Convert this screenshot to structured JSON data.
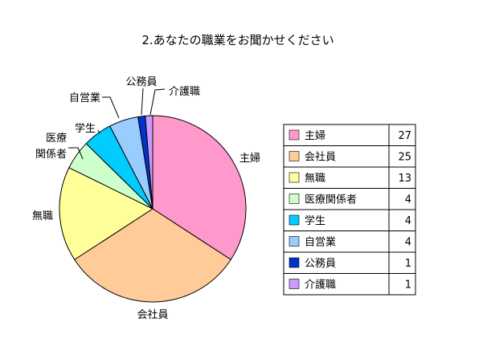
{
  "chart_data": {
    "type": "pie",
    "title": "2.あなたの職業をお聞かせください",
    "categories": [
      "主婦",
      "会社員",
      "無職",
      "医療関係者",
      "学生",
      "自営業",
      "公務員",
      "介護職"
    ],
    "values": [
      27,
      25,
      13,
      4,
      4,
      4,
      1,
      1
    ],
    "colors": [
      "#ff99cc",
      "#ffcc99",
      "#ffff99",
      "#ccffcc",
      "#00ccff",
      "#99ccff",
      "#0033cc",
      "#cc99ff"
    ],
    "pie_labels": [
      [
        "主婦"
      ],
      [
        "会社員"
      ],
      [
        "無職"
      ],
      [
        "医療",
        "関係者"
      ],
      [
        "学生"
      ],
      [
        "自営業"
      ],
      [
        "公務員"
      ],
      [
        "介護職"
      ]
    ],
    "legend_position": "right",
    "legend_shows_values": true
  }
}
